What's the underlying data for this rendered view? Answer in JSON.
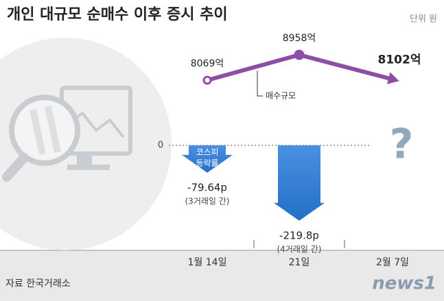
{
  "chart_data": {
    "type": "line",
    "title": "개인 대규모 순매수 이후 증시 추이",
    "unit": "단위 원",
    "source": "자료 한국거래소",
    "logo": "news1",
    "categories": [
      "1월 14일",
      "21일",
      "2월 7일"
    ],
    "yticks": [
      0
    ],
    "series": [
      {
        "name": "매수규모",
        "type": "line",
        "color": "#8b4fa6",
        "values": [
          8069,
          8958,
          8102
        ],
        "value_labels": [
          "8069억",
          "8958억",
          "8102억"
        ]
      },
      {
        "name": "코스피 등락률",
        "type": "bar",
        "color": "#2370c8",
        "values": [
          -79.64,
          -219.8,
          null
        ],
        "value_labels": [
          "-79.64p",
          "-219.8p",
          null
        ]
      }
    ],
    "annotations": [
      "(3거래일 간)",
      "(4거래일 간)",
      "?"
    ]
  }
}
